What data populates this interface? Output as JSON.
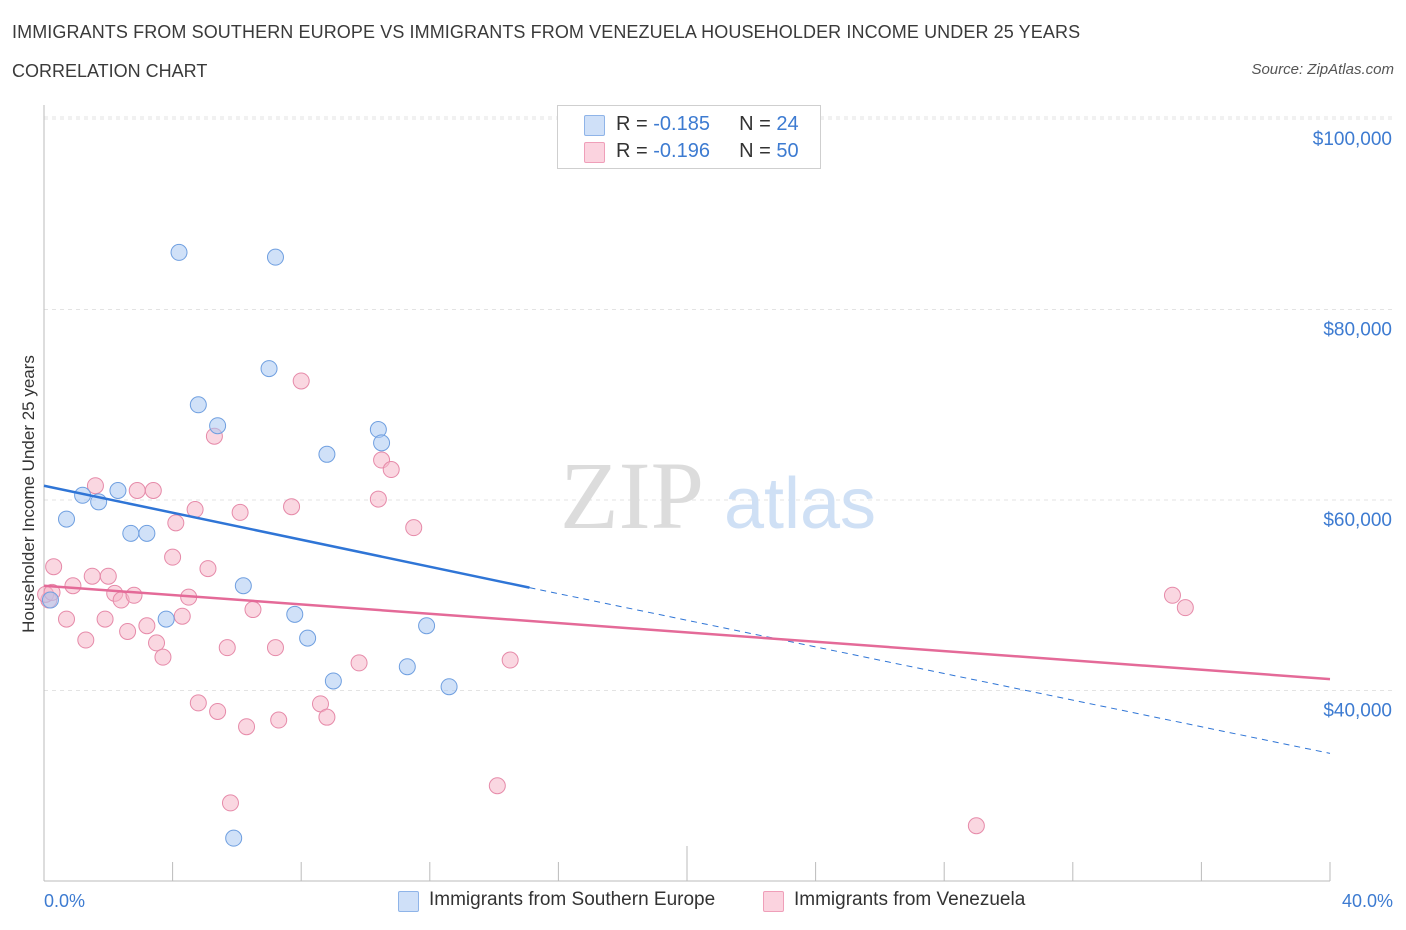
{
  "title": "IMMIGRANTS FROM SOUTHERN EUROPE VS IMMIGRANTS FROM VENEZUELA HOUSEHOLDER INCOME UNDER 25 YEARS",
  "subtitle": "CORRELATION CHART",
  "source": "Source: ZipAtlas.com",
  "watermark": {
    "zip": "ZIP",
    "atlas": "atlas"
  },
  "stats": [
    {
      "r_label": "R = ",
      "r": "-0.185",
      "n_label": "N = ",
      "n": "24",
      "color": "#a9c8f3"
    },
    {
      "r_label": "R = ",
      "r": "-0.196",
      "n_label": "N = ",
      "n": "50",
      "color": "#f6b6c9"
    }
  ],
  "legend": [
    {
      "label": "Immigrants from Southern Europe",
      "color": "#a9c8f3"
    },
    {
      "label": "Immigrants from Venezuela",
      "color": "#f6b6c9"
    }
  ],
  "colors": {
    "blue": "#2f75d6",
    "pink": "#e46a98",
    "axis_text": "#3d7bd1",
    "grid": "#e3e3e3"
  },
  "chart_data": {
    "type": "scatter",
    "title": "IMMIGRANTS FROM SOUTHERN EUROPE VS IMMIGRANTS FROM VENEZUELA HOUSEHOLDER INCOME UNDER 25 YEARS",
    "xlabel": "",
    "ylabel": "Householder Income Under 25 years",
    "xlim": [
      0,
      40
    ],
    "ylim": [
      20000,
      102000
    ],
    "x_tick_labels": [
      "0.0%",
      "40.0%"
    ],
    "y_ticks": [
      {
        "value": 40000,
        "label": "$40,000"
      },
      {
        "value": 60000,
        "label": "$60,000"
      },
      {
        "value": 80000,
        "label": "$80,000"
      },
      {
        "value": 100000,
        "label": "$100,000"
      }
    ],
    "grid": true,
    "legend_position": "bottom-center",
    "series": [
      {
        "name": "Immigrants from Southern Europe",
        "color": "#a9c8f3",
        "stroke": "#6f9fe0",
        "points": [
          [
            0.2,
            49500
          ],
          [
            0.7,
            58000
          ],
          [
            1.2,
            60500
          ],
          [
            1.7,
            59800
          ],
          [
            2.3,
            61000
          ],
          [
            2.7,
            56500
          ],
          [
            3.2,
            56500
          ],
          [
            3.8,
            47500
          ],
          [
            4.2,
            86000
          ],
          [
            4.8,
            70000
          ],
          [
            5.4,
            67800
          ],
          [
            5.9,
            24500
          ],
          [
            6.2,
            51000
          ],
          [
            7.0,
            73800
          ],
          [
            7.2,
            85500
          ],
          [
            7.8,
            48000
          ],
          [
            8.2,
            45500
          ],
          [
            8.8,
            64800
          ],
          [
            9.0,
            41000
          ],
          [
            10.4,
            67400
          ],
          [
            10.5,
            66000
          ],
          [
            11.3,
            42500
          ],
          [
            11.9,
            46800
          ],
          [
            12.6,
            40400
          ]
        ],
        "trend": {
          "x": [
            0,
            15.1
          ],
          "y": [
            61500,
            50800
          ],
          "dashed_to": [
            40,
            33400
          ]
        }
      },
      {
        "name": "Immigrants from Venezuela",
        "color": "#f6b6c9",
        "stroke": "#e68aa9",
        "points": [
          [
            0.15,
            49500
          ],
          [
            0.3,
            53000
          ],
          [
            0.7,
            47500
          ],
          [
            0.9,
            51000
          ],
          [
            1.3,
            45300
          ],
          [
            1.5,
            52000
          ],
          [
            1.6,
            61500
          ],
          [
            1.9,
            47500
          ],
          [
            2.0,
            52000
          ],
          [
            2.2,
            50200
          ],
          [
            2.4,
            49500
          ],
          [
            2.6,
            46200
          ],
          [
            2.8,
            50000
          ],
          [
            2.9,
            61000
          ],
          [
            3.2,
            46800
          ],
          [
            3.4,
            61000
          ],
          [
            3.5,
            45000
          ],
          [
            3.7,
            43500
          ],
          [
            4.0,
            54000
          ],
          [
            4.1,
            57600
          ],
          [
            4.3,
            47800
          ],
          [
            4.5,
            49800
          ],
          [
            4.7,
            59000
          ],
          [
            4.8,
            38700
          ],
          [
            5.1,
            52800
          ],
          [
            5.3,
            66700
          ],
          [
            5.4,
            37800
          ],
          [
            5.7,
            44500
          ],
          [
            5.8,
            28200
          ],
          [
            6.1,
            58700
          ],
          [
            6.3,
            36200
          ],
          [
            6.5,
            48500
          ],
          [
            7.2,
            44500
          ],
          [
            7.3,
            36900
          ],
          [
            7.7,
            59300
          ],
          [
            8.0,
            72500
          ],
          [
            8.6,
            38600
          ],
          [
            8.8,
            37200
          ],
          [
            9.8,
            42900
          ],
          [
            10.4,
            60100
          ],
          [
            10.5,
            64200
          ],
          [
            10.8,
            63200
          ],
          [
            11.5,
            57100
          ],
          [
            14.1,
            30000
          ],
          [
            14.5,
            43200
          ],
          [
            29.0,
            25800
          ],
          [
            35.1,
            50000
          ],
          [
            35.5,
            48700
          ],
          [
            0.05,
            50100
          ],
          [
            0.25,
            50300
          ]
        ],
        "trend": {
          "x": [
            0,
            40
          ],
          "y": [
            51000,
            41200
          ]
        }
      }
    ]
  }
}
